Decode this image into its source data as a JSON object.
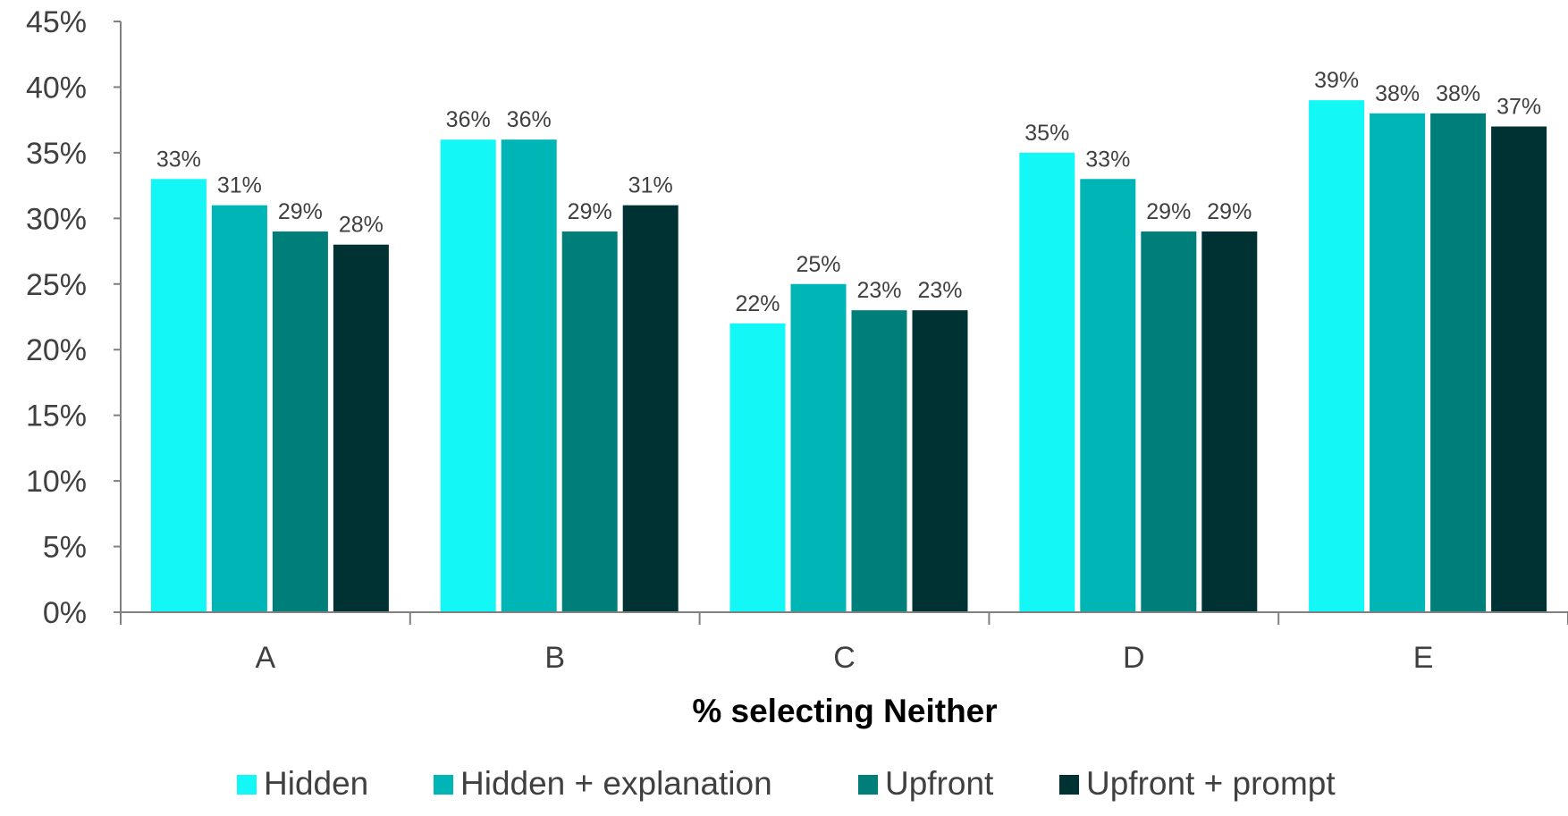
{
  "chart_data": {
    "type": "bar",
    "categories": [
      "A",
      "B",
      "C",
      "D",
      "E"
    ],
    "series": [
      {
        "name": "Hidden",
        "color": "#13F7F7",
        "values": [
          33,
          36,
          22,
          35,
          39
        ]
      },
      {
        "name": "Hidden + explanation",
        "color": "#00B5B5",
        "values": [
          31,
          36,
          25,
          33,
          38
        ]
      },
      {
        "name": "Upfront",
        "color": "#007F7A",
        "values": [
          29,
          29,
          23,
          29,
          38
        ]
      },
      {
        "name": "Upfront + prompt",
        "color": "#003233",
        "values": [
          28,
          31,
          23,
          29,
          37
        ]
      }
    ],
    "data_labels": [
      [
        "33%",
        "36%",
        "22%",
        "35%",
        "39%"
      ],
      [
        "31%",
        "36%",
        "25%",
        "33%",
        "38%"
      ],
      [
        "29%",
        "29%",
        "23%",
        "29%",
        "38%"
      ],
      [
        "28%",
        "31%",
        "23%",
        "29%",
        "37%"
      ]
    ],
    "title": "",
    "xlabel": "% selecting Neither",
    "ylabel": "",
    "ylim": [
      0,
      45
    ],
    "y_ticks": [
      0,
      5,
      10,
      15,
      20,
      25,
      30,
      35,
      40,
      45
    ],
    "y_tick_labels": [
      "0%",
      "5%",
      "10%",
      "15%",
      "20%",
      "25%",
      "30%",
      "35%",
      "40%",
      "45%"
    ],
    "grid": false,
    "legend_position": "bottom"
  }
}
